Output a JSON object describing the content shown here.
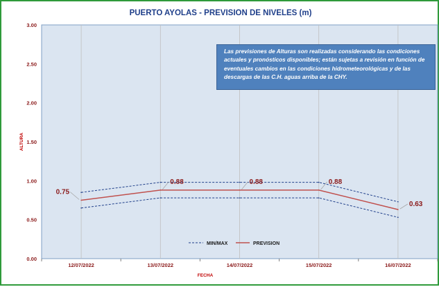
{
  "chart_data": {
    "type": "line",
    "title": "PUERTO AYOLAS - PREVISION DE NIVELES (m)",
    "xlabel": "FECHA",
    "ylabel": "ALTURA",
    "categories": [
      "12/07/2022",
      "13/07/2022",
      "14/07/2022",
      "15/07/2022",
      "16/07/2022"
    ],
    "ylim": [
      0,
      3
    ],
    "yticks": [
      "0.00",
      "0.50",
      "1.00",
      "1.50",
      "2.00",
      "2.50",
      "3.00"
    ],
    "series": [
      {
        "name": "PREVISION",
        "values": [
          0.75,
          0.88,
          0.88,
          0.88,
          0.63
        ],
        "labels": [
          "0.75",
          "0.88",
          "0.88",
          "0.88",
          "0.63"
        ],
        "color": "#c0504d"
      },
      {
        "name": "MIN/MAX",
        "values": [
          0.85,
          0.98,
          0.98,
          0.98,
          0.73
        ],
        "color": "#1f3f8a"
      },
      {
        "name": "",
        "values": [
          0.65,
          0.78,
          0.78,
          0.78,
          0.53
        ],
        "color": "#1f3f8a"
      }
    ],
    "legend_position": "bottom-center",
    "legend": [
      "MIN/MAX",
      "PREVISION"
    ],
    "plot_background": "#dbe5f1",
    "grid": "vertical-only",
    "note": "Las previsiones de Alturas son realizadas considerando las condiciones actuales y pronósticos disponibles; están sujetas a revisión en función de eventuales cambios en las condiciones hidrometeorológicas y de las descargas de las C.H. aguas arriba de la CHY."
  }
}
